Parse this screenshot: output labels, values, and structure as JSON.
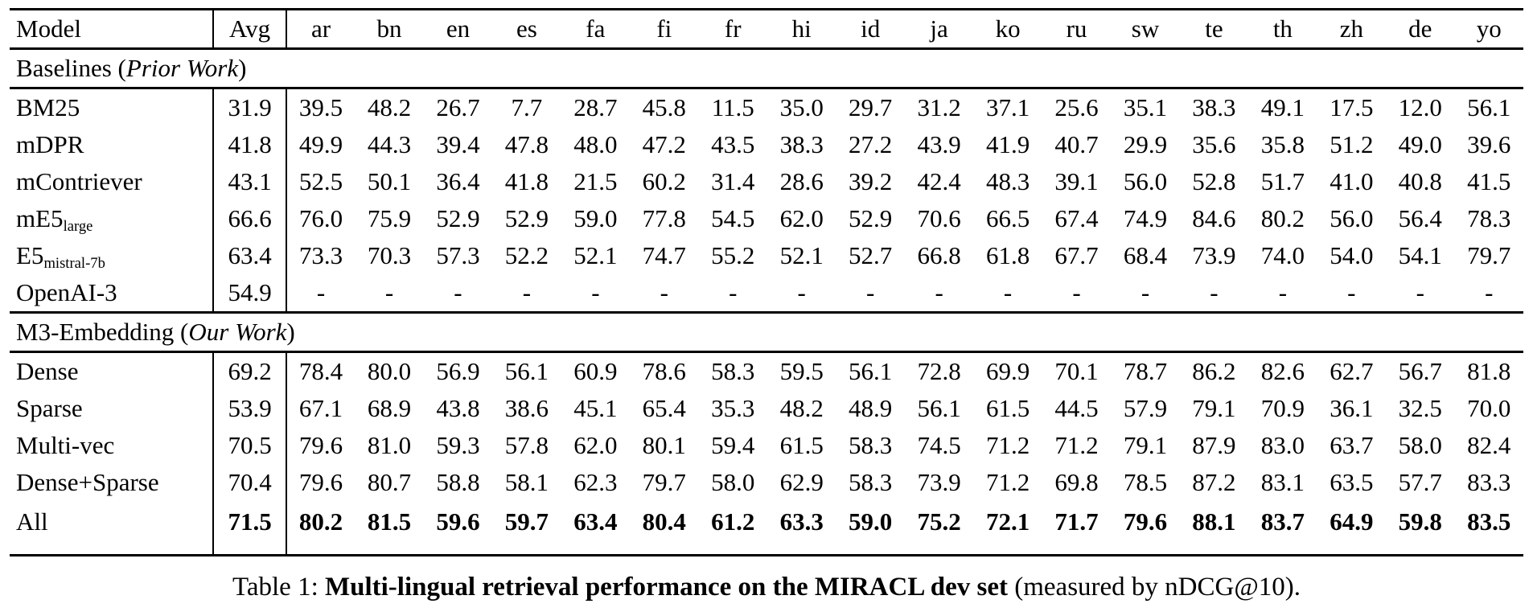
{
  "table": {
    "columns": [
      "Model",
      "Avg",
      "ar",
      "bn",
      "en",
      "es",
      "fa",
      "fi",
      "fr",
      "hi",
      "id",
      "ja",
      "ko",
      "ru",
      "sw",
      "te",
      "th",
      "zh",
      "de",
      "yo"
    ],
    "sections": [
      {
        "title": {
          "pre": "Baselines (",
          "italic": "Prior Work",
          "post": ")"
        },
        "rows": [
          {
            "model": "BM25",
            "model_sub": "",
            "avg": "31.9",
            "bold": false,
            "values": [
              "39.5",
              "48.2",
              "26.7",
              "7.7",
              "28.7",
              "45.8",
              "11.5",
              "35.0",
              "29.7",
              "31.2",
              "37.1",
              "25.6",
              "35.1",
              "38.3",
              "49.1",
              "17.5",
              "12.0",
              "56.1"
            ]
          },
          {
            "model": "mDPR",
            "model_sub": "",
            "avg": "41.8",
            "bold": false,
            "values": [
              "49.9",
              "44.3",
              "39.4",
              "47.8",
              "48.0",
              "47.2",
              "43.5",
              "38.3",
              "27.2",
              "43.9",
              "41.9",
              "40.7",
              "29.9",
              "35.6",
              "35.8",
              "51.2",
              "49.0",
              "39.6"
            ]
          },
          {
            "model": "mContriever",
            "model_sub": "",
            "avg": "43.1",
            "bold": false,
            "values": [
              "52.5",
              "50.1",
              "36.4",
              "41.8",
              "21.5",
              "60.2",
              "31.4",
              "28.6",
              "39.2",
              "42.4",
              "48.3",
              "39.1",
              "56.0",
              "52.8",
              "51.7",
              "41.0",
              "40.8",
              "41.5"
            ]
          },
          {
            "model": "mE5",
            "model_sub": "large",
            "avg": "66.6",
            "bold": false,
            "values": [
              "76.0",
              "75.9",
              "52.9",
              "52.9",
              "59.0",
              "77.8",
              "54.5",
              "62.0",
              "52.9",
              "70.6",
              "66.5",
              "67.4",
              "74.9",
              "84.6",
              "80.2",
              "56.0",
              "56.4",
              "78.3"
            ]
          },
          {
            "model": "E5",
            "model_sub": "mistral-7b",
            "avg": "63.4",
            "bold": false,
            "values": [
              "73.3",
              "70.3",
              "57.3",
              "52.2",
              "52.1",
              "74.7",
              "55.2",
              "52.1",
              "52.7",
              "66.8",
              "61.8",
              "67.7",
              "68.4",
              "73.9",
              "74.0",
              "54.0",
              "54.1",
              "79.7"
            ]
          },
          {
            "model": "OpenAI-3",
            "model_sub": "",
            "avg": "54.9",
            "bold": false,
            "values": [
              "-",
              "-",
              "-",
              "-",
              "-",
              "-",
              "-",
              "-",
              "-",
              "-",
              "-",
              "-",
              "-",
              "-",
              "-",
              "-",
              "-",
              "-"
            ]
          }
        ]
      },
      {
        "title": {
          "pre": "M3-Embedding (",
          "italic": "Our Work",
          "post": ")"
        },
        "rows": [
          {
            "model": "Dense",
            "model_sub": "",
            "avg": "69.2",
            "bold": false,
            "values": [
              "78.4",
              "80.0",
              "56.9",
              "56.1",
              "60.9",
              "78.6",
              "58.3",
              "59.5",
              "56.1",
              "72.8",
              "69.9",
              "70.1",
              "78.7",
              "86.2",
              "82.6",
              "62.7",
              "56.7",
              "81.8"
            ]
          },
          {
            "model": "Sparse",
            "model_sub": "",
            "avg": "53.9",
            "bold": false,
            "values": [
              "67.1",
              "68.9",
              "43.8",
              "38.6",
              "45.1",
              "65.4",
              "35.3",
              "48.2",
              "48.9",
              "56.1",
              "61.5",
              "44.5",
              "57.9",
              "79.1",
              "70.9",
              "36.1",
              "32.5",
              "70.0"
            ]
          },
          {
            "model": "Multi-vec",
            "model_sub": "",
            "avg": "70.5",
            "bold": false,
            "values": [
              "79.6",
              "81.0",
              "59.3",
              "57.8",
              "62.0",
              "80.1",
              "59.4",
              "61.5",
              "58.3",
              "74.5",
              "71.2",
              "71.2",
              "79.1",
              "87.9",
              "83.0",
              "63.7",
              "58.0",
              "82.4"
            ]
          },
          {
            "model": "Dense+Sparse",
            "model_sub": "",
            "avg": "70.4",
            "bold": false,
            "values": [
              "79.6",
              "80.7",
              "58.8",
              "58.1",
              "62.3",
              "79.7",
              "58.0",
              "62.9",
              "58.3",
              "73.9",
              "71.2",
              "69.8",
              "78.5",
              "87.2",
              "83.1",
              "63.5",
              "57.7",
              "83.3"
            ]
          },
          {
            "model": "All",
            "model_sub": "",
            "avg": "71.5",
            "bold": true,
            "values": [
              "80.2",
              "81.5",
              "59.6",
              "59.7",
              "63.4",
              "80.4",
              "61.2",
              "63.3",
              "59.0",
              "75.2",
              "72.1",
              "71.7",
              "79.6",
              "88.1",
              "83.7",
              "64.9",
              "59.8",
              "83.5"
            ]
          }
        ]
      }
    ]
  },
  "caption": {
    "prefix": "Table 1: ",
    "bold": "Multi-lingual retrieval performance on the MIRACL dev set",
    "suffix": " (measured by nDCG@10)."
  }
}
